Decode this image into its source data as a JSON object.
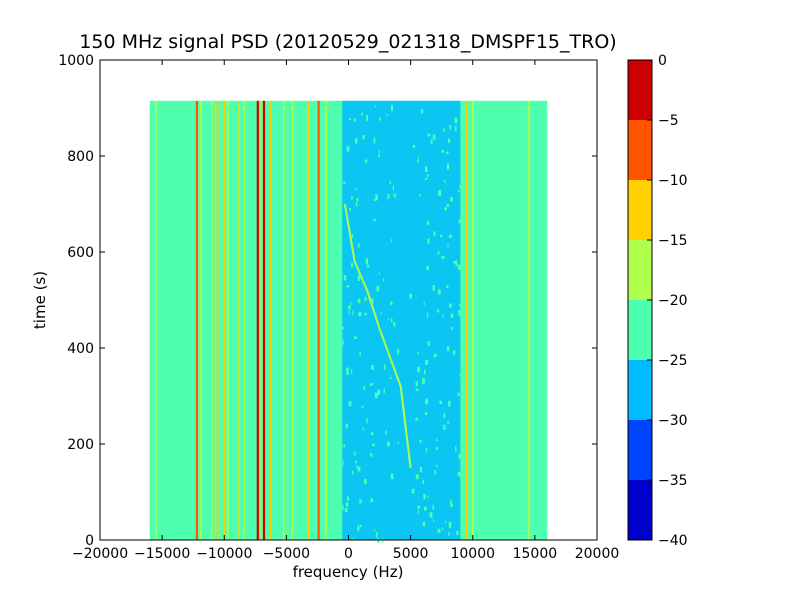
{
  "chart_data": {
    "type": "heatmap",
    "title": "150 MHz signal PSD (20120529_021318_DMSPF15_TRO)",
    "xlabel": "frequency (Hz)",
    "ylabel": "time (s)",
    "xlim": [
      -20000,
      20000
    ],
    "ylim": [
      0,
      1000
    ],
    "xticks": [
      -20000,
      -15000,
      -10000,
      -5000,
      0,
      5000,
      10000,
      15000,
      20000
    ],
    "yticks": [
      0,
      200,
      400,
      600,
      800,
      1000
    ],
    "data_extent": {
      "x": [
        -16000,
        16000
      ],
      "y": [
        0,
        915
      ]
    },
    "grid": false,
    "colorbar": {
      "levels": [
        -40,
        -35,
        -30,
        -25,
        -20,
        -15,
        -10,
        -5,
        0
      ],
      "colors": [
        "#0000cd",
        "#0044ff",
        "#00bbff",
        "#4dffaf",
        "#b0ff4d",
        "#ffd000",
        "#ff5500",
        "#cc0000"
      ]
    },
    "background_level": -22.5,
    "low_band": {
      "x_range": [
        -500,
        9000
      ],
      "level": -27.5
    },
    "vertical_lines": [
      {
        "f": -15500,
        "level": -17.5
      },
      {
        "f": -12200,
        "level": -7.5
      },
      {
        "f": -11900,
        "level": -17.5
      },
      {
        "f": -11000,
        "level": -17.5
      },
      {
        "f": -10700,
        "level": -12.5
      },
      {
        "f": -10400,
        "level": -12.5
      },
      {
        "f": -10000,
        "level": -12.5
      },
      {
        "f": -9700,
        "level": -17.5
      },
      {
        "f": -8800,
        "level": -12.5
      },
      {
        "f": -8400,
        "level": -17.5
      },
      {
        "f": -7300,
        "level": -2.5
      },
      {
        "f": -7000,
        "level": -12.5
      },
      {
        "f": -6800,
        "level": -2.5
      },
      {
        "f": -6300,
        "level": -12.5
      },
      {
        "f": -5200,
        "level": -17.5
      },
      {
        "f": -4500,
        "level": -17.5
      },
      {
        "f": -3200,
        "level": -12.5
      },
      {
        "f": -2400,
        "level": -7.5
      },
      {
        "f": -1800,
        "level": -17.5
      },
      {
        "f": 9500,
        "level": -12.5
      },
      {
        "f": 10000,
        "level": -17.5
      },
      {
        "f": 14500,
        "level": -17.5
      }
    ],
    "drift_track": {
      "level": -17.5,
      "points": [
        [
          -300,
          700
        ],
        [
          500,
          580
        ],
        [
          1500,
          520
        ],
        [
          2500,
          440
        ],
        [
          4200,
          320
        ],
        [
          5000,
          150
        ]
      ]
    }
  }
}
